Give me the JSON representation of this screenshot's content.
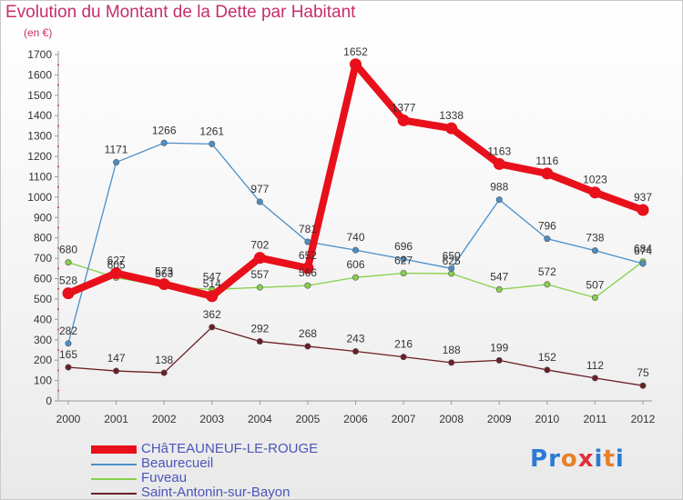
{
  "title": "Evolution du Montant de la Dette par Habitant",
  "subtitle": "(en €)",
  "logo": {
    "text": "Proxiti",
    "letters": [
      "P",
      "r",
      "o",
      "x",
      "i",
      "t",
      "i"
    ],
    "colors": [
      "#2a7bd6",
      "#2a7bd6",
      "#e7802a",
      "#e0303a",
      "#2a7bd6",
      "#e7802a",
      "#2a7bd6"
    ]
  },
  "chart_data": {
    "type": "line",
    "title": "Evolution du Montant de la Dette par Habitant",
    "subtitle": "(en €)",
    "x": [
      "2000",
      "2001",
      "2002",
      "2003",
      "2004",
      "2005",
      "2006",
      "2007",
      "2008",
      "2009",
      "2010",
      "2011",
      "2012"
    ],
    "ylim": [
      0,
      1700
    ],
    "yticks": [
      0,
      100,
      200,
      300,
      400,
      500,
      600,
      700,
      800,
      900,
      1000,
      1100,
      1200,
      1300,
      1400,
      1500,
      1600,
      1700
    ],
    "grid": false,
    "legend": "bottom-left",
    "series": [
      {
        "name": "CHâTEAUNEUF-LE-ROUGE",
        "color": "#e8101a",
        "values": [
          528,
          627,
          573,
          514,
          702,
          652,
          1652,
          1377,
          1338,
          1163,
          1116,
          1023,
          937
        ]
      },
      {
        "name": "Beaurecueil",
        "color": "#4a8fc8",
        "values": [
          282,
          1171,
          1266,
          1261,
          977,
          781,
          740,
          696,
          650,
          988,
          796,
          738,
          674
        ]
      },
      {
        "name": "Fuveau",
        "color": "#86d04a",
        "values": [
          680,
          605,
          563,
          547,
          557,
          566,
          606,
          627,
          625,
          547,
          572,
          507,
          684
        ]
      },
      {
        "name": "Saint-Antonin-sur-Bayon",
        "color": "#6b1f25",
        "values": [
          165,
          147,
          138,
          362,
          292,
          268,
          243,
          216,
          188,
          199,
          152,
          112,
          75
        ]
      }
    ]
  }
}
